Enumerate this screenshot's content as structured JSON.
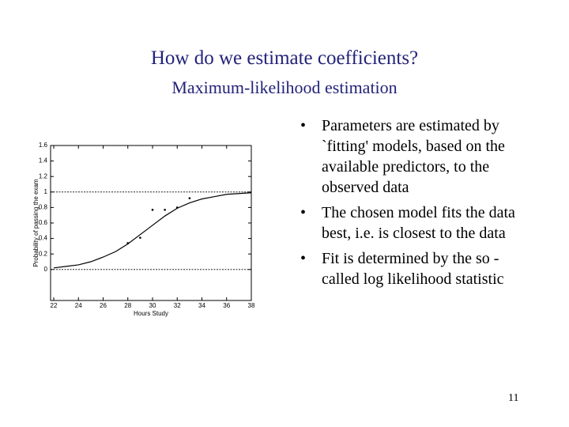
{
  "title": "How do we estimate coefficients?",
  "subtitle": "Maximum-likelihood estimation",
  "bullets": [
    "Parameters are estimated by `fitting' models, based on the available predictors, to the observed data",
    "The chosen model fits the data best, i.e. is closest to the data",
    "Fit is determined by the so -called log likelihood statistic"
  ],
  "page_number": "11",
  "chart_data": {
    "type": "line",
    "xlabel": "Hours Study",
    "ylabel": "Probability of passing the exam",
    "xlim": [
      22,
      38
    ],
    "xticks": [
      22,
      24,
      26,
      28,
      30,
      32,
      34,
      36,
      38
    ],
    "ylim": [
      -0.4,
      1.6
    ],
    "yticks": [
      0,
      0.2,
      0.4,
      0.6,
      0.8,
      1,
      1.2,
      1.4,
      1.6
    ],
    "reference_lines": [
      0,
      1
    ],
    "series": [
      {
        "style": "markers",
        "color": "#000000",
        "x": [
          28,
          29,
          30,
          31,
          32,
          33
        ],
        "values": [
          0.34,
          0.41,
          0.77,
          0.77,
          0.8,
          0.92
        ]
      },
      {
        "style": "line",
        "color": "#000000",
        "x": [
          22,
          23,
          24,
          25,
          26,
          27,
          28,
          29,
          30,
          31,
          32,
          33,
          34,
          35,
          36,
          37,
          38
        ],
        "values": [
          0.02,
          0.04,
          0.06,
          0.1,
          0.16,
          0.23,
          0.33,
          0.45,
          0.57,
          0.69,
          0.79,
          0.86,
          0.91,
          0.94,
          0.97,
          0.98,
          0.99
        ]
      }
    ]
  }
}
